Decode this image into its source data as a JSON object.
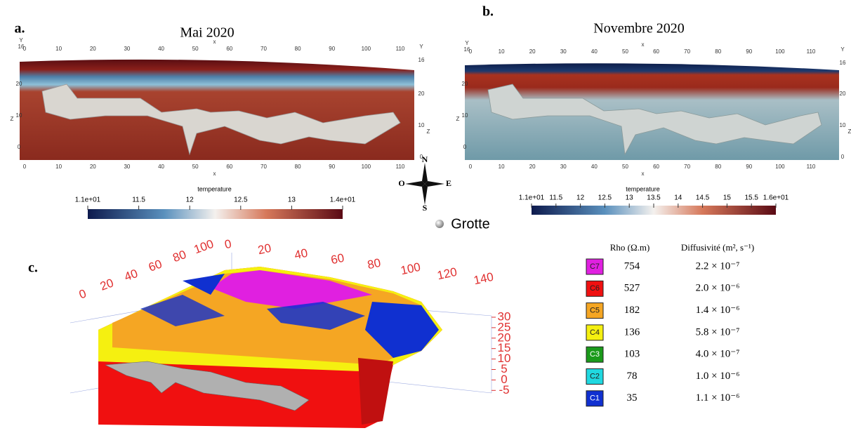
{
  "panel_a": {
    "label": "a.",
    "title": "Mai 2020",
    "top_ticks": [
      0,
      10,
      20,
      30,
      40,
      50,
      60,
      70,
      80,
      90,
      100,
      110
    ],
    "bottom_ticks": [
      0,
      10,
      20,
      30,
      40,
      50,
      60,
      70,
      80,
      90,
      100,
      110
    ],
    "x_label_top": "x",
    "x_label_bottom": "x",
    "y_left": "Y",
    "y_right": "Y",
    "corner_left": 16,
    "corner_right": 16,
    "z_label_left": "Z",
    "z_label_right": "Z",
    "z_ticks_left": [
      20,
      10,
      0
    ],
    "z_ticks_right": [
      20,
      10,
      0
    ],
    "colorbar_title": "temperature",
    "colorbar_ticks": [
      "1.1e+01",
      "11.5",
      "12",
      "12.5",
      "13",
      "1.4e+01"
    ]
  },
  "panel_b": {
    "label": "b.",
    "title": "Novembre 2020",
    "top_ticks": [
      0,
      10,
      20,
      30,
      40,
      50,
      60,
      70,
      80,
      90,
      100,
      110
    ],
    "bottom_ticks": [
      0,
      10,
      20,
      30,
      40,
      50,
      60,
      70,
      80,
      90,
      100,
      110
    ],
    "x_label_top": "x",
    "x_label_bottom": "x",
    "y_left": "Y",
    "y_right": "Y",
    "corner_left": 16,
    "corner_right": 16,
    "z_label_left": "Z",
    "z_label_right": "Z",
    "z_ticks_left": [
      20,
      10,
      0
    ],
    "z_ticks_right": [
      20,
      10,
      0
    ],
    "colorbar_title": "temperature",
    "colorbar_ticks": [
      "1.1e+01",
      "11.5",
      "12",
      "12.5",
      "13",
      "13.5",
      "14",
      "14.5",
      "15",
      "15.5",
      "1.6e+01"
    ]
  },
  "compass": {
    "n": "N",
    "s": "S",
    "e": "E",
    "o": "O"
  },
  "grotte": "Grotte",
  "panel_c": {
    "label": "c.",
    "axis_top": [
      0,
      20,
      40,
      60,
      80,
      100,
      120,
      140
    ],
    "axis_left": [
      0,
      20,
      40,
      60,
      80,
      100
    ],
    "axis_z": [
      30,
      25,
      20,
      15,
      10,
      5,
      0,
      -5
    ]
  },
  "legend": {
    "header_rho": "Rho (Ω.m)",
    "header_diff": "Diffusivité (m², s⁻¹)",
    "rows": [
      {
        "class": "C7",
        "color": "#e020e0",
        "rho": 754,
        "diff": "2.2 × 10⁻⁷"
      },
      {
        "class": "C6",
        "color": "#f01010",
        "rho": 527,
        "diff": "2.0 × 10⁻⁶"
      },
      {
        "class": "C5",
        "color": "#f5a623",
        "rho": 182,
        "diff": "1.4 × 10⁻⁶"
      },
      {
        "class": "C4",
        "color": "#f5f010",
        "rho": 136,
        "diff": "5.8 × 10⁻⁷"
      },
      {
        "class": "C3",
        "color": "#1a9a1a",
        "rho": 103,
        "diff": "4.0 × 10⁻⁷"
      },
      {
        "class": "C2",
        "color": "#20d8e0",
        "rho": 78,
        "diff": "1.0 × 10⁻⁶"
      },
      {
        "class": "C1",
        "color": "#1030d0",
        "rho": 35,
        "diff": "1.1 × 10⁻⁶"
      }
    ]
  }
}
